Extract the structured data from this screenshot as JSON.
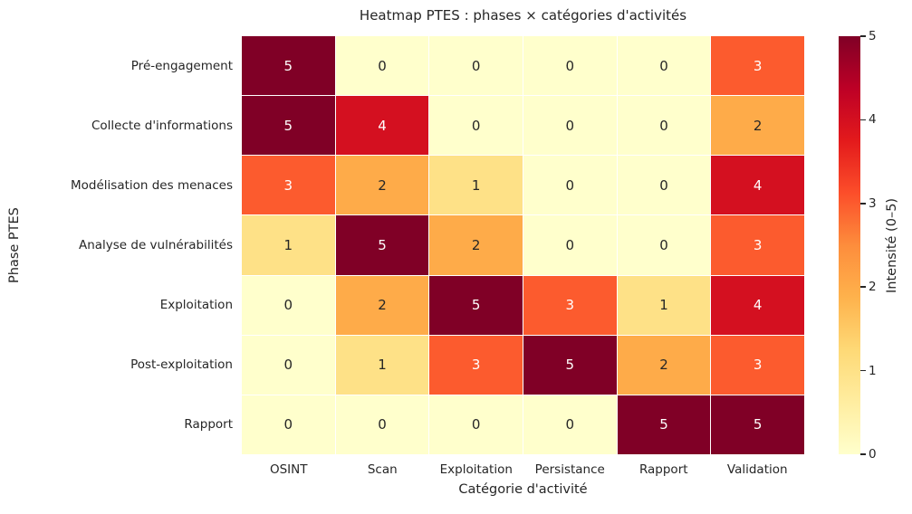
{
  "chart_data": {
    "type": "heatmap",
    "title": "Heatmap PTES : phases × catégories d'activités",
    "xlabel": "Catégorie d'activité",
    "ylabel": "Phase PTES",
    "colorbar_label": "Intensité (0–5)",
    "rows": [
      "Pré-engagement",
      "Collecte d'informations",
      "Modélisation des menaces",
      "Analyse de vulnérabilités",
      "Exploitation",
      "Post-exploitation",
      "Rapport"
    ],
    "columns": [
      "OSINT",
      "Scan",
      "Exploitation",
      "Persistance",
      "Rapport",
      "Validation"
    ],
    "values": [
      [
        5,
        0,
        0,
        0,
        0,
        3
      ],
      [
        5,
        4,
        0,
        0,
        0,
        2
      ],
      [
        3,
        2,
        1,
        0,
        0,
        4
      ],
      [
        1,
        5,
        2,
        0,
        0,
        3
      ],
      [
        0,
        2,
        5,
        3,
        1,
        4
      ],
      [
        0,
        1,
        3,
        5,
        2,
        3
      ],
      [
        0,
        0,
        0,
        0,
        5,
        5
      ]
    ],
    "vmin": 0,
    "vmax": 5,
    "colorbar_ticks": [
      0,
      1,
      2,
      3,
      4,
      5
    ],
    "colormap": "YlOrRd",
    "colormap_stops": [
      "#ffffcc",
      "#ffeda0",
      "#fed976",
      "#feb24c",
      "#fd8d3c",
      "#fc4e2a",
      "#e31a1c",
      "#bd0026",
      "#800026"
    ],
    "value_colors": {
      "0": "#ffffcc",
      "1": "#fee187",
      "2": "#feab49",
      "3": "#fc5b2e",
      "4": "#d41020",
      "5": "#800026"
    },
    "light_text_min_value": 3,
    "dark_text_color": "#262626",
    "light_text_color": "#ffffff",
    "grid_line_color": "#ffffff",
    "legend_position": "right-colorbar"
  }
}
